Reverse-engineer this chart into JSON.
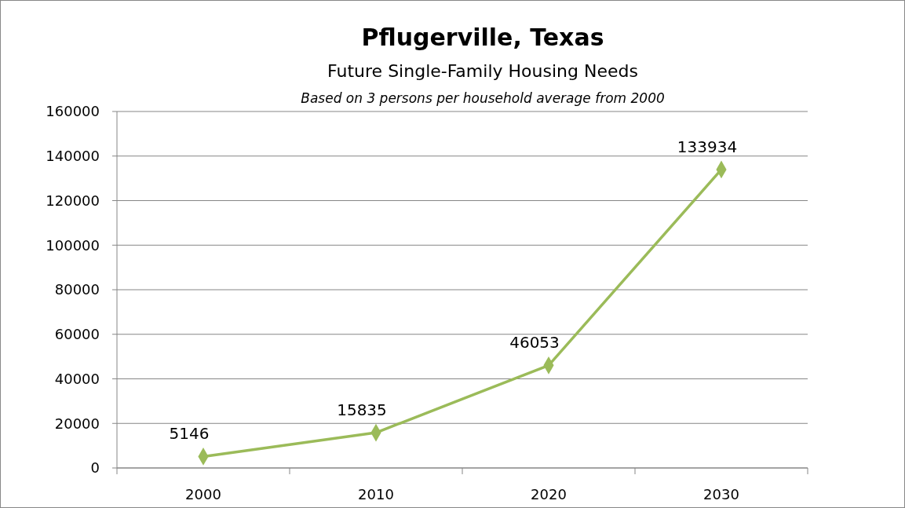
{
  "chart_data": {
    "type": "line",
    "title": "Pflugerville, Texas",
    "subtitle": "Future Single-Family Housing Needs",
    "annotations": [
      "Based on 3 persons per household average from 2000"
    ],
    "categories": [
      "2000",
      "2010",
      "2020",
      "2030"
    ],
    "series": [
      {
        "color": "#9bbb59",
        "values": [
          5146,
          15835,
          46053,
          133934
        ]
      }
    ],
    "ylim": [
      0,
      160000
    ],
    "yticks": [
      0,
      20000,
      40000,
      60000,
      80000,
      100000,
      120000,
      140000,
      160000
    ],
    "grid": "y",
    "marker": "diamond",
    "line_style": "solid",
    "data_labels": true
  }
}
